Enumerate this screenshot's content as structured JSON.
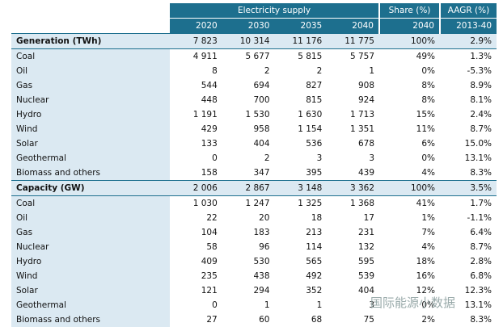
{
  "table": {
    "header": {
      "group": "Electricity supply",
      "share": "Share (%)",
      "aagr": "AAGR (%)",
      "columns": [
        "2020",
        "2030",
        "2035",
        "2040",
        "2040",
        "2013-40"
      ]
    },
    "sections": [
      {
        "label": "Generation (TWh)",
        "values": [
          "7 823",
          "10 314",
          "11 176",
          "11 775",
          "100%",
          "2.9%"
        ],
        "rows": [
          [
            "Coal",
            "4 911",
            "5 677",
            "5 815",
            "5 757",
            "49%",
            "1.3%"
          ],
          [
            "Oil",
            "8",
            "2",
            "2",
            "1",
            "0%",
            "-5.3%"
          ],
          [
            "Gas",
            "544",
            "694",
            "827",
            "908",
            "8%",
            "8.9%"
          ],
          [
            "Nuclear",
            "448",
            "700",
            "815",
            "924",
            "8%",
            "8.1%"
          ],
          [
            "Hydro",
            "1 191",
            "1 530",
            "1 630",
            "1 713",
            "15%",
            "2.4%"
          ],
          [
            "Wind",
            "429",
            "958",
            "1 154",
            "1 351",
            "11%",
            "8.7%"
          ],
          [
            "Solar",
            "133",
            "404",
            "536",
            "678",
            "6%",
            "15.0%"
          ],
          [
            "Geothermal",
            "0",
            "2",
            "3",
            "3",
            "0%",
            "13.1%"
          ],
          [
            "Biomass and others",
            "158",
            "347",
            "395",
            "439",
            "4%",
            "8.3%"
          ]
        ]
      },
      {
        "label": "Capacity (GW)",
        "values": [
          "2 006",
          "2 867",
          "3 148",
          "3 362",
          "100%",
          "3.5%"
        ],
        "rows": [
          [
            "Coal",
            "1 030",
            "1 247",
            "1 325",
            "1 368",
            "41%",
            "1.7%"
          ],
          [
            "Oil",
            "22",
            "20",
            "18",
            "17",
            "1%",
            "-1.1%"
          ],
          [
            "Gas",
            "104",
            "183",
            "213",
            "231",
            "7%",
            "6.4%"
          ],
          [
            "Nuclear",
            "58",
            "96",
            "114",
            "132",
            "4%",
            "8.7%"
          ],
          [
            "Hydro",
            "409",
            "530",
            "565",
            "595",
            "18%",
            "2.8%"
          ],
          [
            "Wind",
            "235",
            "438",
            "492",
            "539",
            "16%",
            "6.8%"
          ],
          [
            "Solar",
            "121",
            "294",
            "352",
            "404",
            "12%",
            "12.3%"
          ],
          [
            "Geothermal",
            "0",
            "1",
            "1",
            "3",
            "0%",
            "13.1%"
          ],
          [
            "Biomass and others",
            "27",
            "60",
            "68",
            "75",
            "2%",
            "8.3%"
          ]
        ]
      }
    ]
  },
  "watermark": "国际能源小数据"
}
